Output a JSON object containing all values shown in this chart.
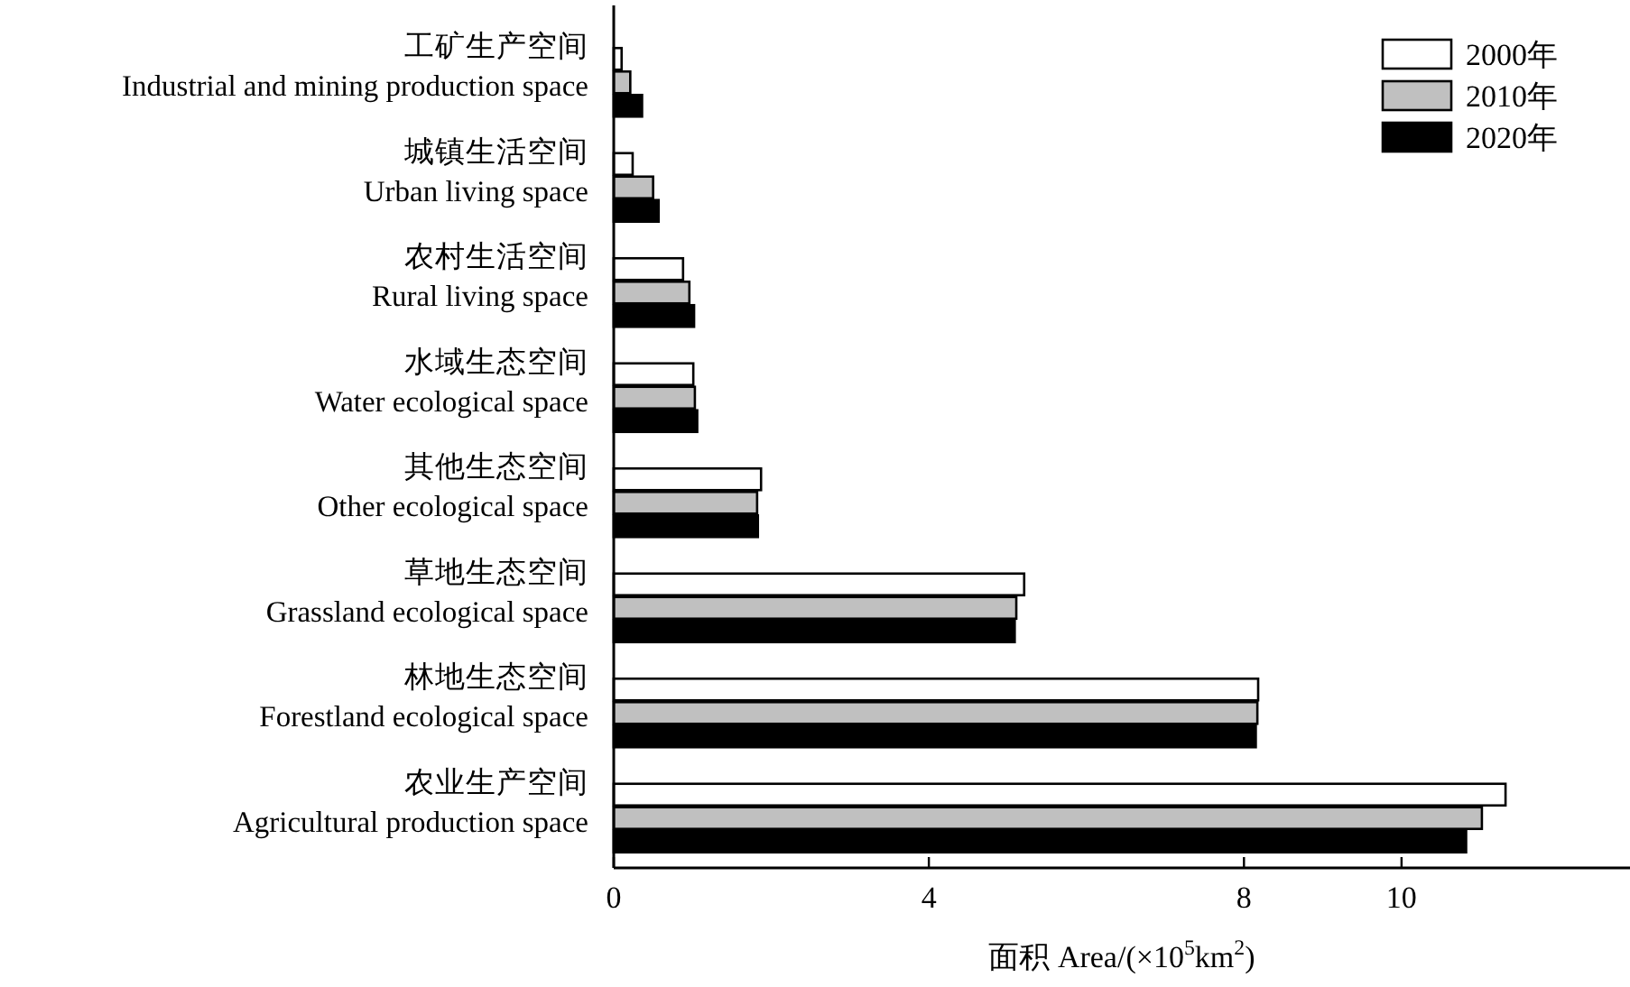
{
  "chart_data": {
    "type": "bar",
    "orientation": "horizontal",
    "categories": [
      "工矿生产空间\nIndustrial and mining production space",
      "城镇生活空间\nUrban living space",
      "农村生活空间\nRural living space",
      "水域生态空间\nWater ecological space",
      "其他生态空间\nOther ecological space",
      "草地生态空间\nGrassland ecological space",
      "林地生态空间\nForestland ecological space",
      "农业生产空间\nAgricultural production space"
    ],
    "series": [
      {
        "name": "2000年",
        "color": "#ffffff",
        "values": [
          0.1,
          0.24,
          0.88,
          1.01,
          1.87,
          5.21,
          8.18,
          11.32
        ]
      },
      {
        "name": "2010年",
        "color": "#c0c0c0",
        "values": [
          0.21,
          0.5,
          0.96,
          1.03,
          1.82,
          5.11,
          8.17,
          11.02
        ]
      },
      {
        "name": "2020年",
        "color": "#000000",
        "values": [
          0.36,
          0.57,
          1.02,
          1.06,
          1.83,
          5.09,
          8.15,
          10.82
        ]
      }
    ],
    "xlabel": "面积 Area/(×10$^{5}$km$^{2}$)",
    "xlim": [
      0,
      12.9
    ],
    "xticks": [
      0,
      4,
      8,
      10
    ],
    "legend": "top right",
    "grid": false
  }
}
